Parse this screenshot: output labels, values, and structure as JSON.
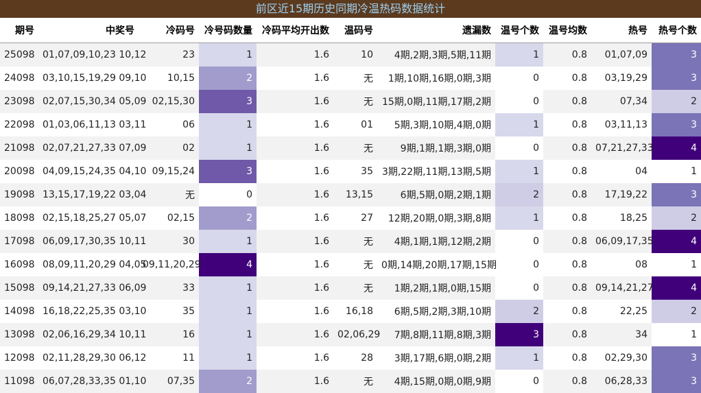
{
  "title": "前区近15期历史同期冷温热码数据统计",
  "chart_data": {
    "type": "table",
    "columns": [
      "期号",
      "中奖号",
      "冷码号",
      "冷号码数量",
      "冷码平均开出数",
      "温码号",
      "遗漏数",
      "温号个数",
      "温号均数",
      "热号",
      "热号个数"
    ],
    "rows": [
      [
        "25098",
        "01,07,09,10,23 10,12",
        "23",
        "1",
        "1.6",
        "10",
        "4期,2期,3期,5期,11期",
        "1",
        "0.8",
        "01,07,09",
        "3"
      ],
      [
        "24098",
        "03,10,15,19,29 09,10",
        "10,15",
        "2",
        "1.6",
        "无",
        "1期,10期,16期,0期,3期",
        "0",
        "0.8",
        "03,19,29",
        "3"
      ],
      [
        "23098",
        "02,07,15,30,34 05,09",
        "02,15,30",
        "3",
        "1.6",
        "无",
        "15期,0期,11期,17期,2期",
        "0",
        "0.8",
        "07,34",
        "2"
      ],
      [
        "22098",
        "01,03,06,11,13 03,11",
        "06",
        "1",
        "1.6",
        "01",
        "5期,3期,10期,4期,0期",
        "1",
        "0.8",
        "03,11,13",
        "3"
      ],
      [
        "21098",
        "02,07,21,27,33 07,09",
        "02",
        "1",
        "1.6",
        "无",
        "9期,1期,1期,3期,0期",
        "0",
        "0.8",
        "07,21,27,33",
        "4"
      ],
      [
        "20098",
        "04,09,15,24,35 04,10",
        "09,15,24",
        "3",
        "1.6",
        "35",
        "3期,22期,11期,13期,5期",
        "1",
        "0.8",
        "04",
        "1"
      ],
      [
        "19098",
        "13,15,17,19,22 03,04",
        "无",
        "0",
        "1.6",
        "13,15",
        "6期,5期,0期,2期,1期",
        "2",
        "0.8",
        "17,19,22",
        "3"
      ],
      [
        "18098",
        "02,15,18,25,27 05,07",
        "02,15",
        "2",
        "1.6",
        "27",
        "12期,20期,0期,3期,8期",
        "1",
        "0.8",
        "18,25",
        "2"
      ],
      [
        "17098",
        "06,09,17,30,35 10,11",
        "30",
        "1",
        "1.6",
        "无",
        "4期,1期,1期,12期,2期",
        "0",
        "0.8",
        "06,09,17,35",
        "4"
      ],
      [
        "16098",
        "08,09,11,20,29 04,05",
        "09,11,20,29",
        "4",
        "1.6",
        "无",
        "0期,14期,20期,17期,15期",
        "0",
        "0.8",
        "08",
        "1"
      ],
      [
        "15098",
        "09,14,21,27,33 06,09",
        "33",
        "1",
        "1.6",
        "无",
        "1期,2期,1期,0期,15期",
        "0",
        "0.8",
        "09,14,21,27",
        "4"
      ],
      [
        "14098",
        "16,18,22,25,35 03,10",
        "35",
        "1",
        "1.6",
        "16,18",
        "6期,5期,2期,3期,10期",
        "2",
        "0.8",
        "22,25",
        "2"
      ],
      [
        "13098",
        "02,06,16,29,34 10,11",
        "16",
        "1",
        "1.6",
        "02,06,29",
        "7期,8期,11期,8期,3期",
        "3",
        "0.8",
        "34",
        "1"
      ],
      [
        "12098",
        "02,11,28,29,30 06,12",
        "11",
        "1",
        "1.6",
        "28",
        "3期,17期,6期,0期,2期",
        "1",
        "0.8",
        "02,29,30",
        "3"
      ],
      [
        "11098",
        "06,07,28,33,35 01,10",
        "07,35",
        "2",
        "1.6",
        "无",
        "4期,15期,0期,0期,9期",
        "0",
        "0.8",
        "06,28,33",
        "3"
      ]
    ],
    "heatmap_columns": [
      "冷号码数量",
      "温号个数",
      "热号个数"
    ],
    "colors": {
      "title_bg": "#5b3a1e",
      "title_text": "#9fd0f0",
      "level_1": "#d8d8ec",
      "level_2": "#a19ccc",
      "level_3": "#7059a8",
      "level_4": "#40007a"
    }
  }
}
